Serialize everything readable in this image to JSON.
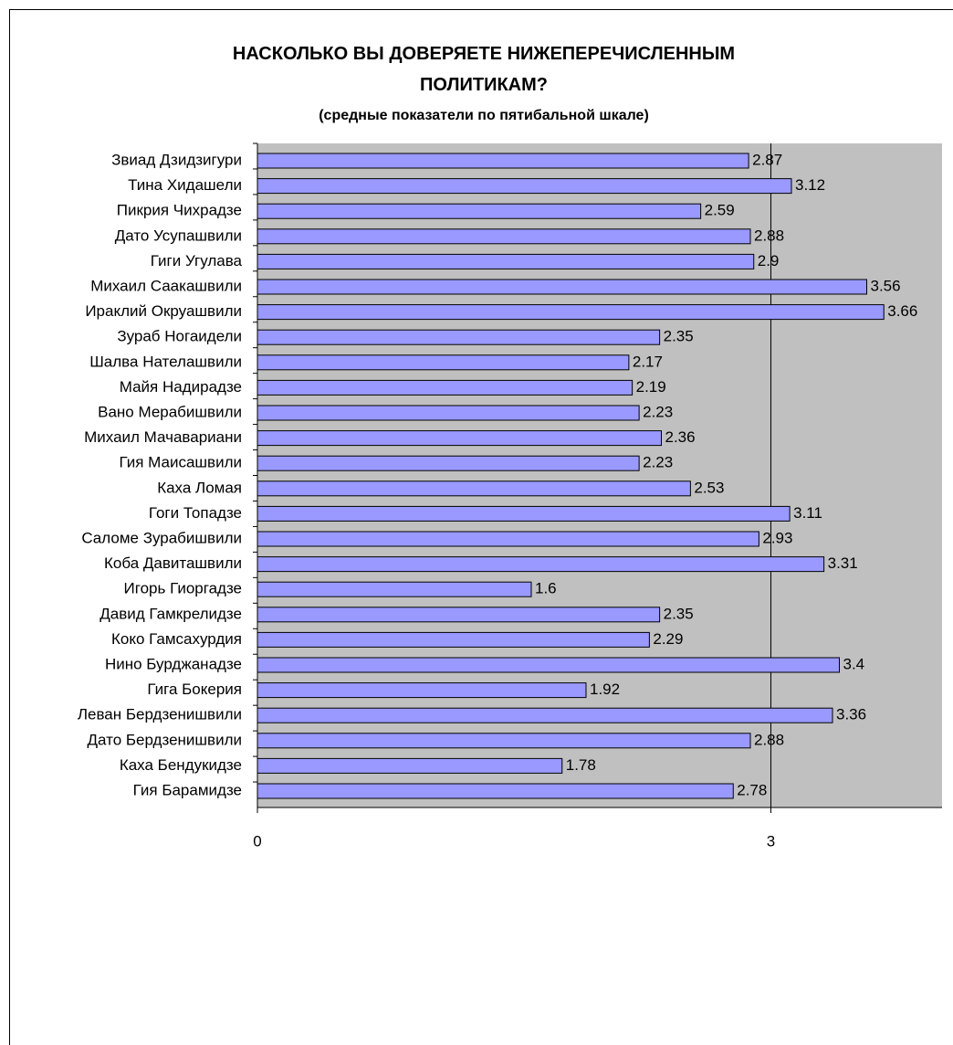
{
  "chart_data": {
    "type": "bar",
    "orientation": "horizontal",
    "title": "НАСКОЛЬКО ВЫ ДОВЕРЯЕТЕ НИЖЕПЕРЕЧИСЛЕННЫМ ПОЛИТИКАМ?",
    "subtitle": "(средные показатели по пятибальной шкале)",
    "categories": [
      "Звиад Дзидзигури",
      "Тина Хидашели",
      "Пикрия Чихрадзе",
      "Дато Усупашвили",
      "Гиги Угулава",
      "Михаил Саакашвили",
      "Ираклий Окруашвили",
      "Зураб Ногаидели",
      "Шалва Нателашвили",
      "Майя Надирадзе",
      "Вано Мерабишвили",
      "Михаил Мачавариани",
      "Гия Маисашвили",
      "Каха Ломая",
      "Гоги Топадзе",
      "Саломе Зурабишвили",
      "Коба Давиташвили",
      "Игорь Гиоргадзе",
      "Давид Гамкрелидзе",
      "Коко Гамсахурдия",
      "Нино Бурджанадзе",
      "Гига Бокерия",
      "Леван Бердзенишвили",
      "Дато Бердзенишвили",
      "Каха Бендукидзе",
      "Гия Барамидзе"
    ],
    "values": [
      2.87,
      3.12,
      2.59,
      2.88,
      2.9,
      3.56,
      3.66,
      2.35,
      2.17,
      2.19,
      2.23,
      2.36,
      2.23,
      2.53,
      3.11,
      2.93,
      3.31,
      1.6,
      2.35,
      2.29,
      3.4,
      1.92,
      3.36,
      2.88,
      1.78,
      2.78
    ],
    "color": "#9999ff",
    "xlim": [
      0,
      4
    ],
    "xticks": [
      0,
      3
    ],
    "grid": true,
    "background": "#c0c0c0"
  }
}
